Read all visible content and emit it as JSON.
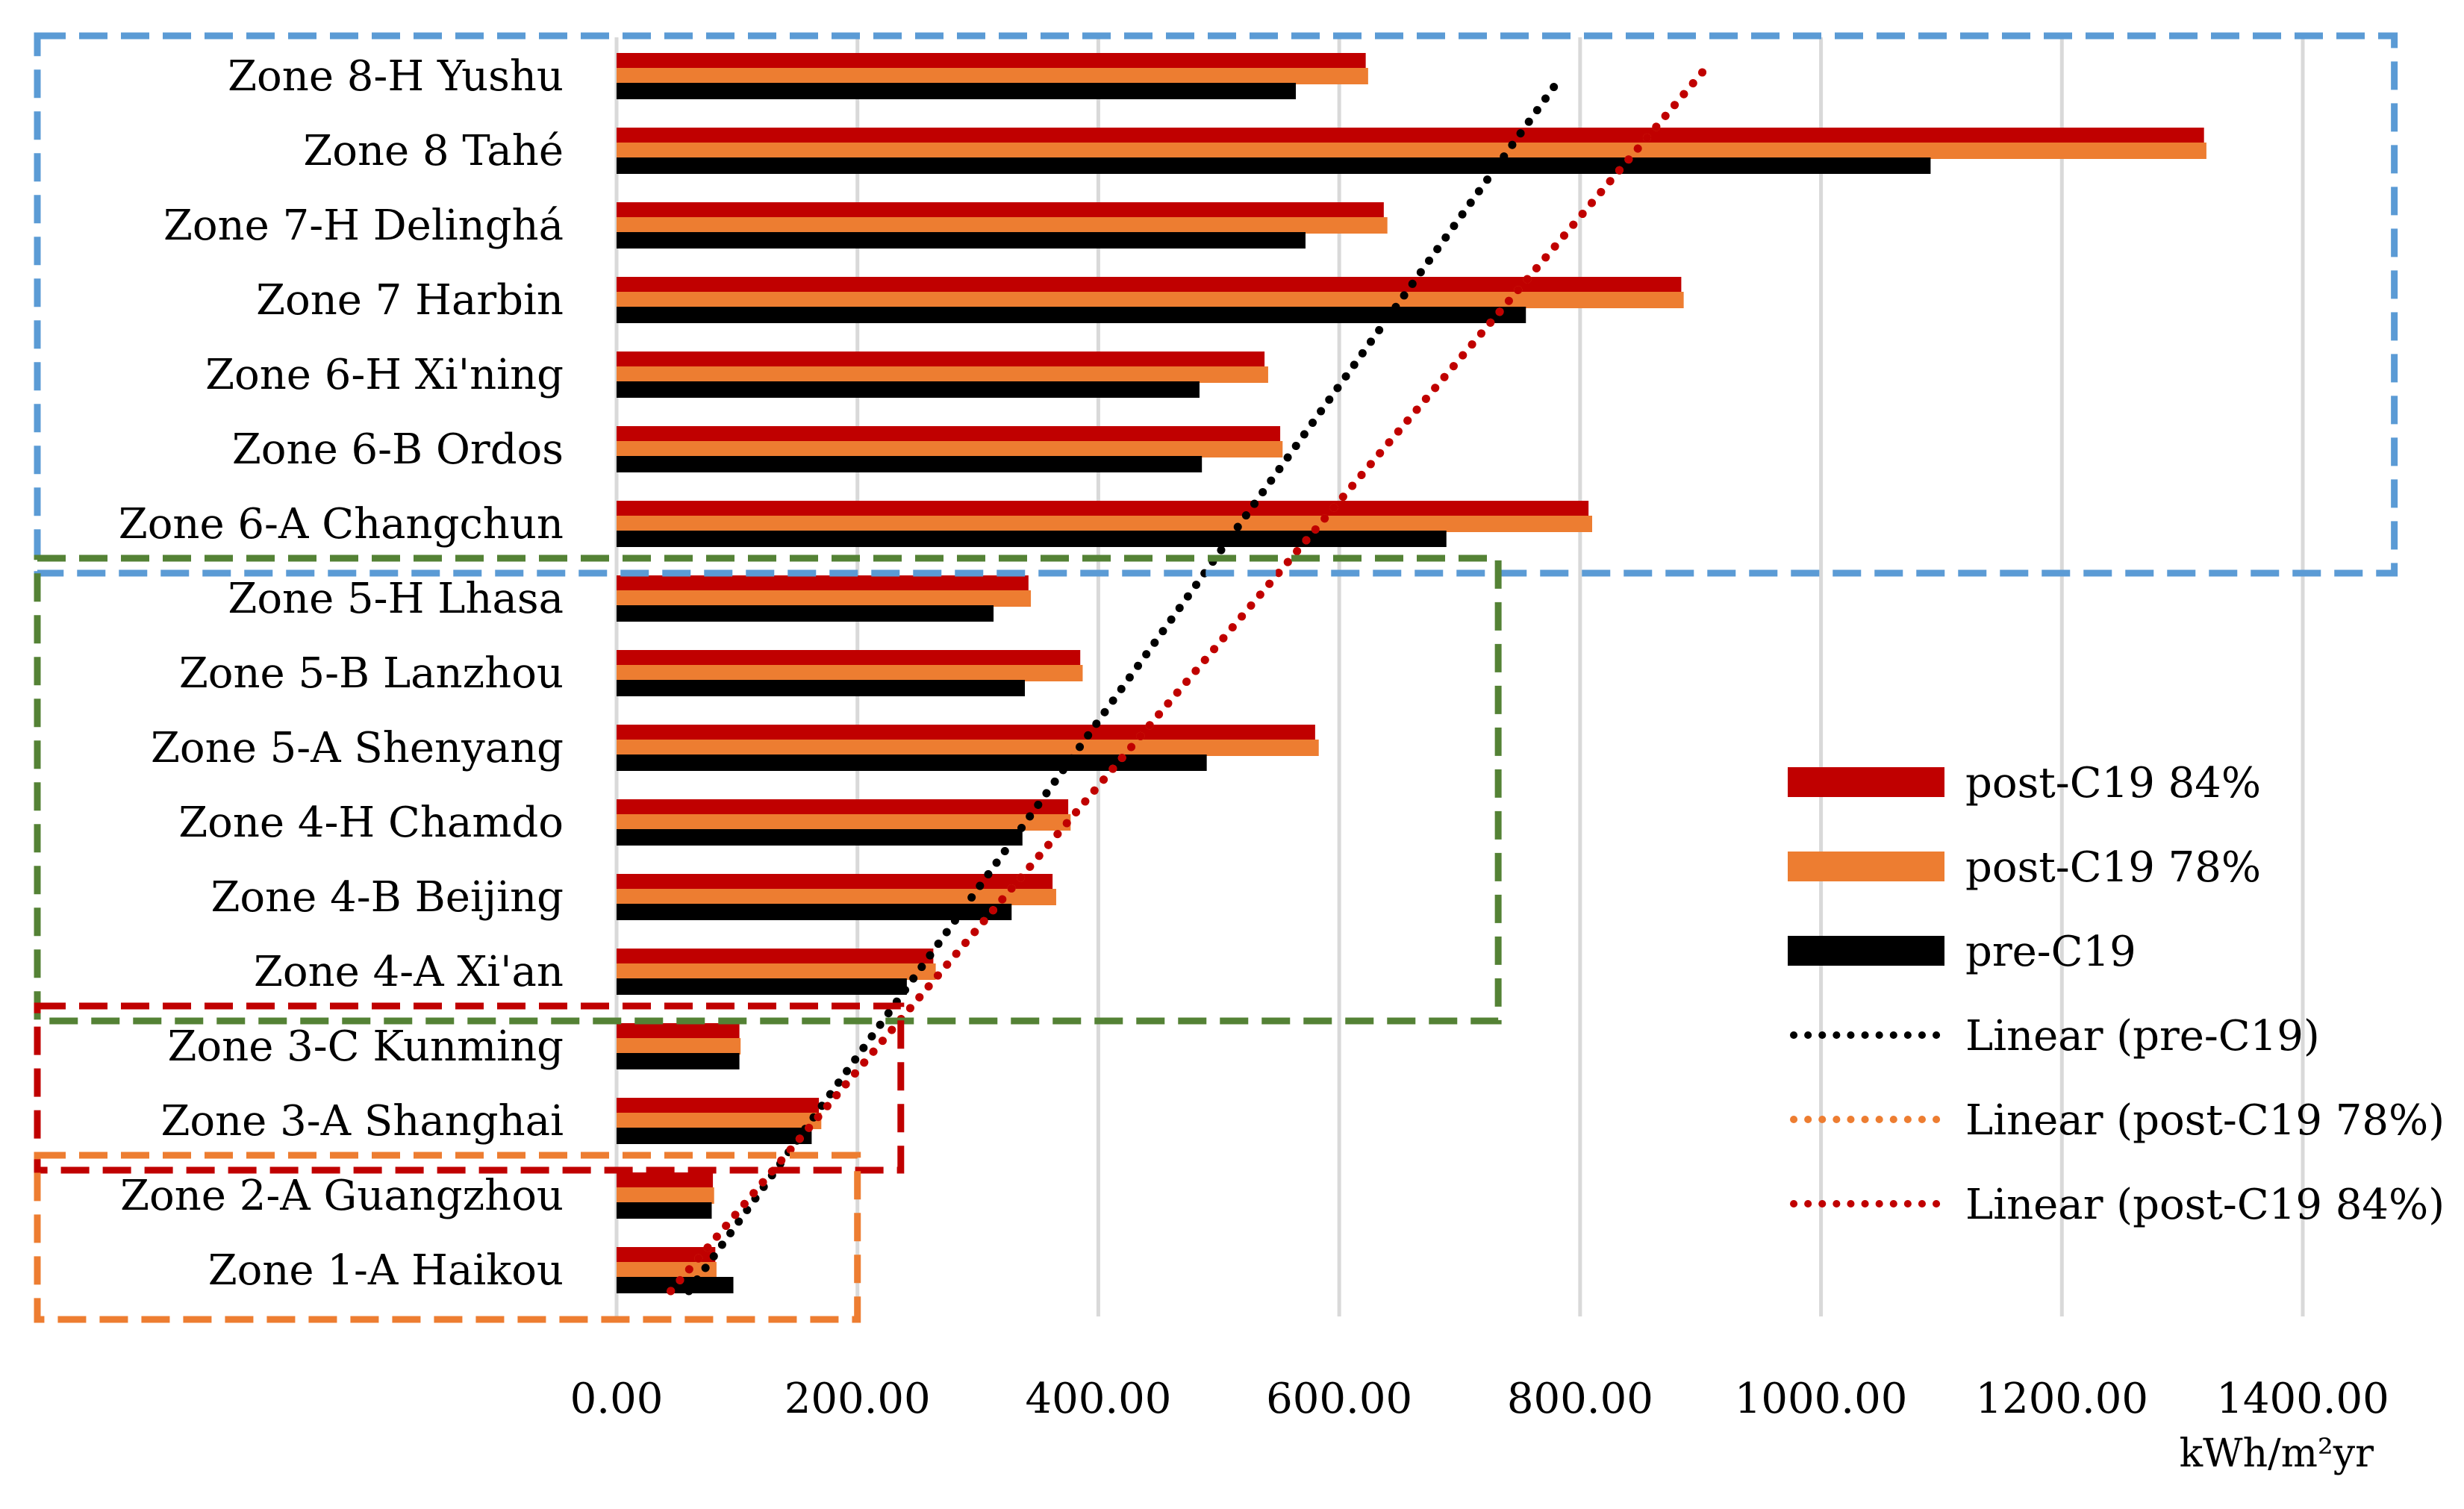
{
  "chart_data": {
    "type": "bar",
    "orientation": "horizontal",
    "title": "",
    "xlabel": "kWh/m²yr",
    "ylabel": "",
    "xlim": [
      0,
      1400
    ],
    "x_ticks": [
      0,
      200,
      400,
      600,
      800,
      1000,
      1200,
      1400
    ],
    "x_tick_labels": [
      "0.00",
      "200.00",
      "400.00",
      "600.00",
      "800.00",
      "1000.00",
      "1200.00",
      "1400.00"
    ],
    "grid": "vertical",
    "legend_position": "right",
    "categories": [
      "Zone 8-H Yushu",
      "Zone 8 Tahé",
      "Zone 7-H Delinghá",
      "Zone 7 Harbin",
      "Zone 6-H Xi'ning",
      "Zone 6-B Ordos",
      "Zone 6-A Changchun",
      "Zone 5-H Lhasa",
      "Zone 5-B Lanzhou",
      "Zone 5-A Shenyang",
      "Zone 4-H Chamdo",
      "Zone 4-B Beijing",
      "Zone 4-A Xi'an",
      "Zone 3-C Kunming",
      "Zone 3-A Shanghai",
      "Zone 2-A Guangzhou",
      "Zone 1-A Haikou"
    ],
    "series": [
      {
        "name": "post-C19 84%",
        "color": "#c00000",
        "values": [
          622,
          1318,
          637,
          884,
          538,
          551,
          807,
          342,
          385,
          580,
          375,
          362,
          263,
          102,
          168,
          80,
          82
        ]
      },
      {
        "name": "post-C19 78%",
        "color": "#ed7d31",
        "values": [
          624,
          1320,
          640,
          886,
          541,
          553,
          810,
          344,
          387,
          583,
          377,
          365,
          265,
          103,
          170,
          81,
          83
        ]
      },
      {
        "name": "pre-C19",
        "color": "#000000",
        "values": [
          564,
          1091,
          572,
          755,
          484,
          486,
          689,
          313,
          339,
          490,
          337,
          328,
          241,
          102,
          162,
          79,
          97
        ]
      }
    ],
    "trendlines": [
      {
        "name": "Linear (pre-C19)",
        "color": "#000000",
        "from": 60,
        "to": 782
      },
      {
        "name": "Linear (post-C19 78%)",
        "color": "#ed7d31",
        "from": 45,
        "to": 903
      },
      {
        "name": "Linear (post-C19 84%)",
        "color": "#c00000",
        "from": 45,
        "to": 903
      }
    ],
    "zone_groups": [
      {
        "name": "zone-group-cold",
        "color": "#5b9bd5",
        "x_to": 1476,
        "first": 0,
        "last": 6
      },
      {
        "name": "zone-group-temperate",
        "color": "#548235",
        "x_to": 732,
        "first": 7,
        "last": 12
      },
      {
        "name": "zone-group-warm",
        "color": "#c00000",
        "x_to": 236,
        "first": 13,
        "last": 14
      },
      {
        "name": "zone-group-hot",
        "color": "#ed7d31",
        "x_to": 200,
        "first": 15,
        "last": 16
      }
    ],
    "legend": [
      {
        "label": "post-C19 84%",
        "kind": "bar",
        "color": "#c00000"
      },
      {
        "label": "post-C19 78%",
        "kind": "bar",
        "color": "#ed7d31"
      },
      {
        "label": "pre-C19",
        "kind": "bar",
        "color": "#000000"
      },
      {
        "label": "Linear (pre-C19)",
        "kind": "line",
        "color": "#000000"
      },
      {
        "label": "Linear (post-C19 78%)",
        "kind": "line",
        "color": "#ed7d31"
      },
      {
        "label": "Linear (post-C19 84%)",
        "kind": "line",
        "color": "#c00000"
      }
    ]
  }
}
